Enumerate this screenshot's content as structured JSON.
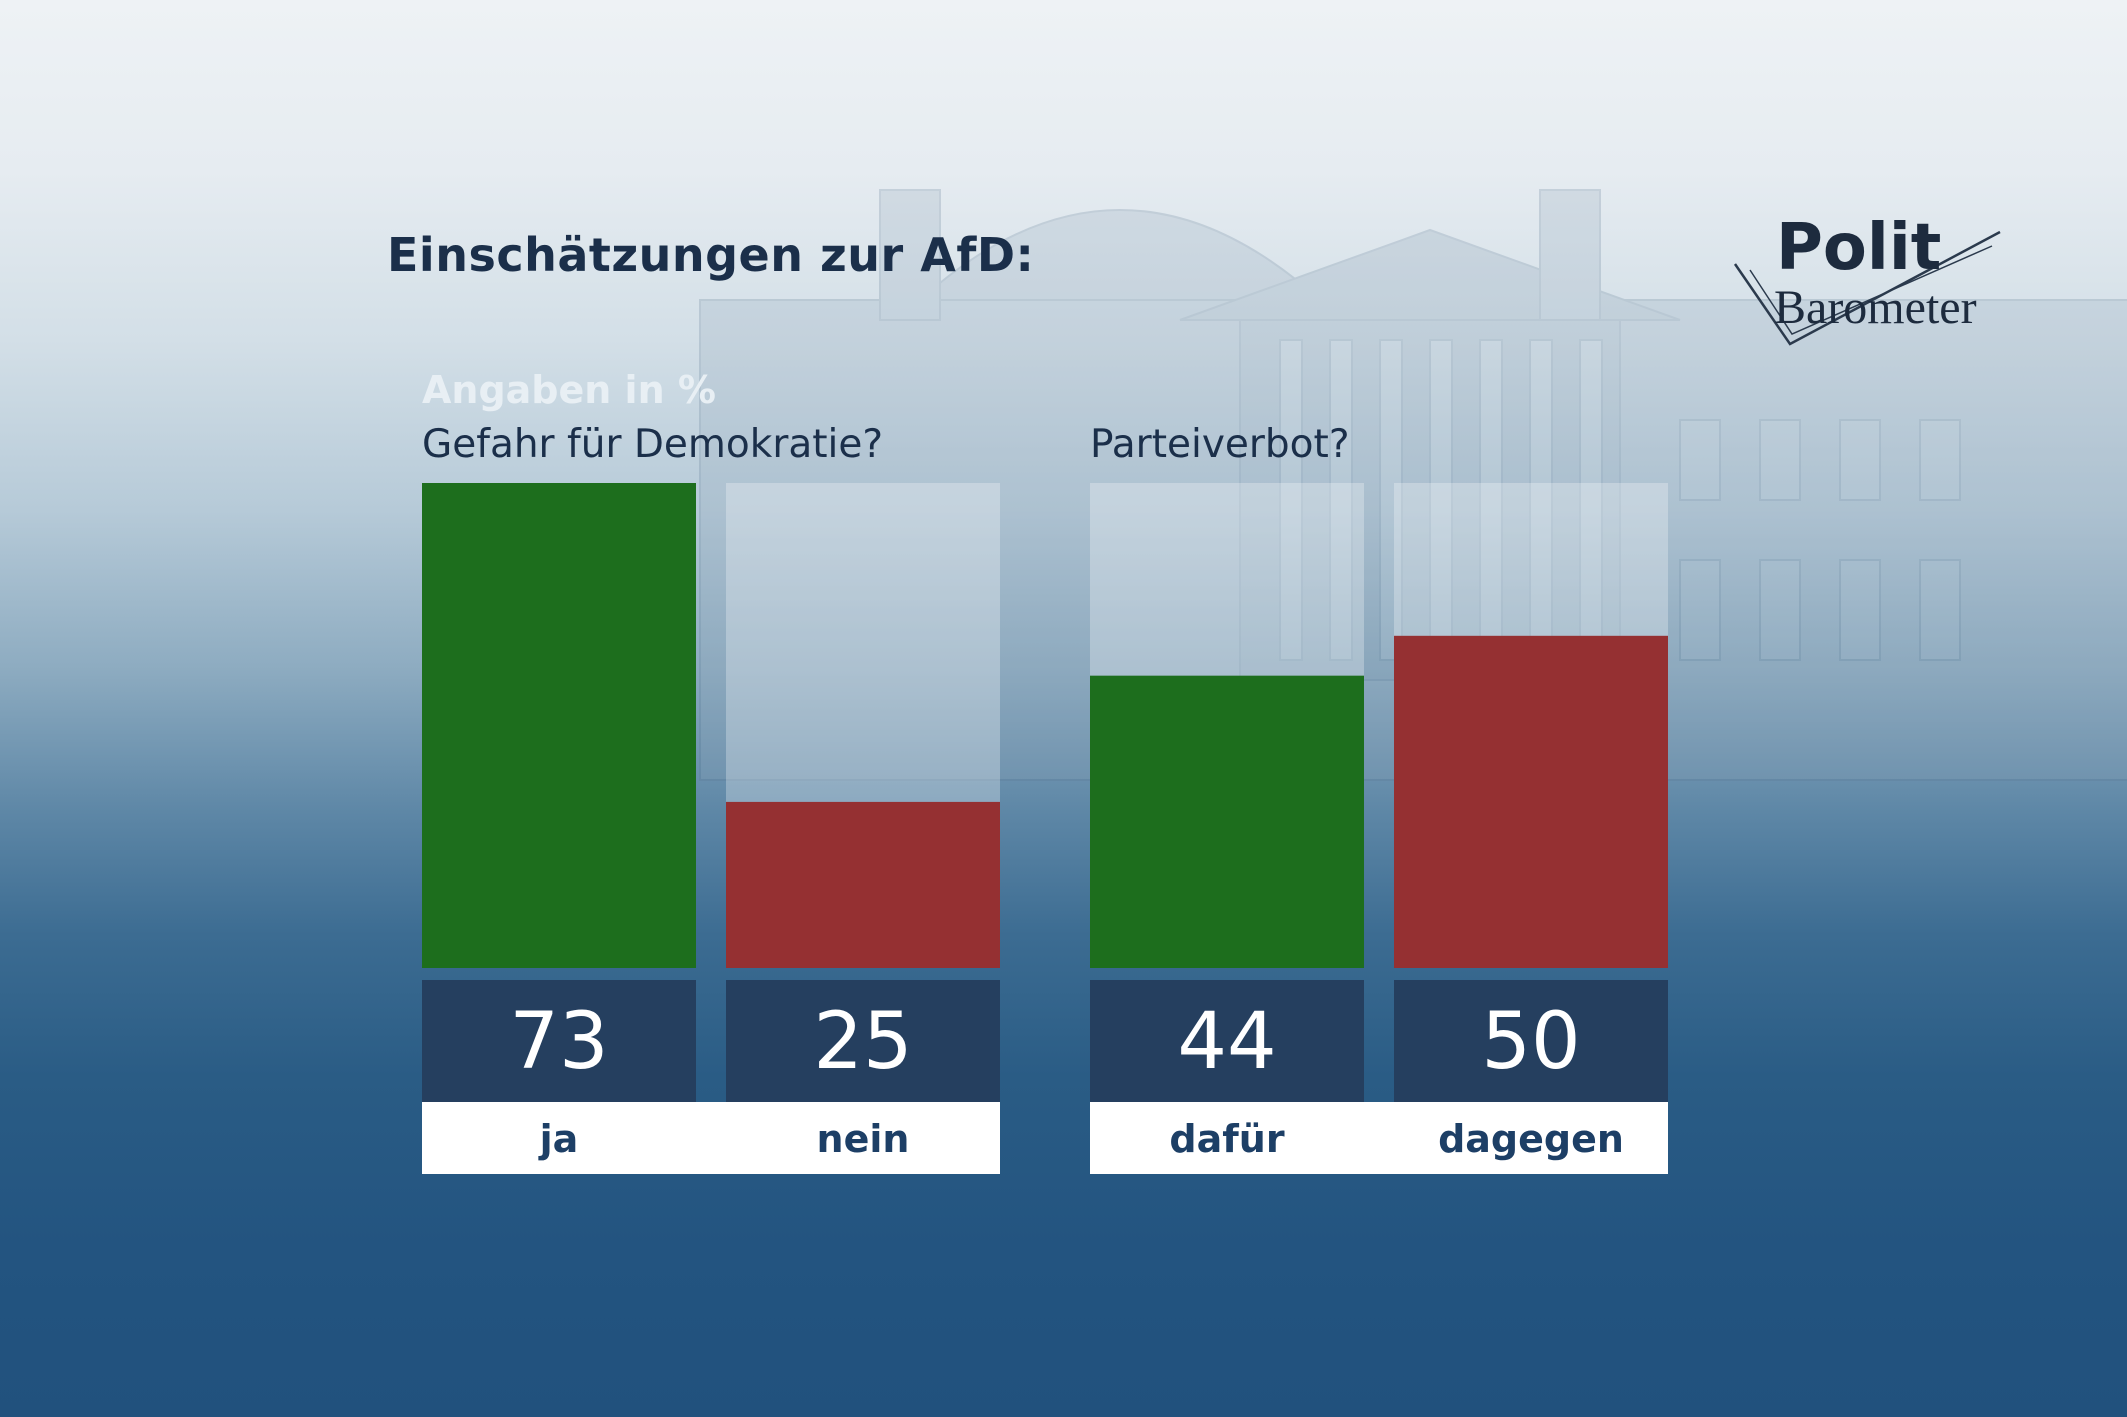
{
  "title": "Einschätzungen zur AfD:",
  "logo": {
    "line1": "Polit",
    "line2": "Barometer"
  },
  "unit_note": "Angaben in %",
  "colors": {
    "positive": "#1d6e1d",
    "negative": "#953032",
    "value_box": "#253f5f",
    "value_text": "#ffffff",
    "label_text": "#1d3f66",
    "title_text": "#1b2f4a"
  },
  "chart_data": [
    {
      "type": "bar",
      "title": "Gefahr für Demokratie?",
      "categories": [
        "ja",
        "nein"
      ],
      "values": [
        73,
        25
      ],
      "value_labels": [
        "73",
        "25"
      ],
      "ylim": [
        0,
        73
      ],
      "ylabel": "Angaben in %",
      "legend": "none",
      "grid": false
    },
    {
      "type": "bar",
      "title": "Parteiverbot?",
      "categories": [
        "dafür",
        "dagegen"
      ],
      "values": [
        44,
        50
      ],
      "value_labels": [
        "44",
        "50"
      ],
      "ylim": [
        0,
        73
      ],
      "ylabel": "Angaben in %",
      "legend": "none",
      "grid": false
    }
  ]
}
